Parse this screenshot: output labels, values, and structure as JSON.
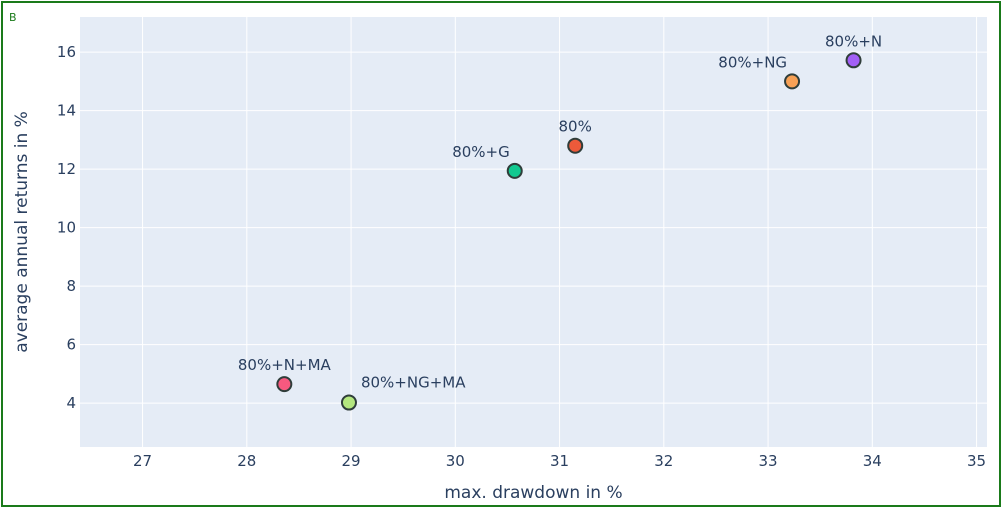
{
  "panel": {
    "label": "B"
  },
  "chart_data": {
    "type": "scatter",
    "title": "",
    "xlabel": "max. drawdown in %",
    "ylabel": "average annual returns in %",
    "xlim": [
      26.4,
      35.1
    ],
    "ylim": [
      2.5,
      17.2
    ],
    "xticks": [
      27,
      28,
      29,
      30,
      31,
      32,
      33,
      34,
      35
    ],
    "yticks": [
      4,
      6,
      8,
      10,
      12,
      14,
      16
    ],
    "grid": true,
    "legend": "none",
    "colors": {
      "plot_bg": "#e5ecf6",
      "grid": "#ffffff",
      "text": "#2a3f5f",
      "marker_edge": "#2f3d3a",
      "frame": "#1a7a1a"
    },
    "points": [
      {
        "label": "80%+N",
        "x": 33.82,
        "y": 15.72,
        "color": "#a25ff5",
        "label_pos": "above"
      },
      {
        "label": "80%+NG",
        "x": 33.23,
        "y": 15.0,
        "color": "#f7a156",
        "label_pos": "above-left"
      },
      {
        "label": "80%",
        "x": 31.15,
        "y": 12.8,
        "color": "#ec5a3a",
        "label_pos": "above"
      },
      {
        "label": "80%+G",
        "x": 30.57,
        "y": 11.94,
        "color": "#12c990",
        "label_pos": "above-left"
      },
      {
        "label": "80%+N+MA",
        "x": 28.36,
        "y": 4.65,
        "color": "#f7597f",
        "label_pos": "above"
      },
      {
        "label": "80%+NG+MA",
        "x": 28.98,
        "y": 4.02,
        "color": "#b4e77f",
        "label_pos": "above-right"
      }
    ]
  }
}
